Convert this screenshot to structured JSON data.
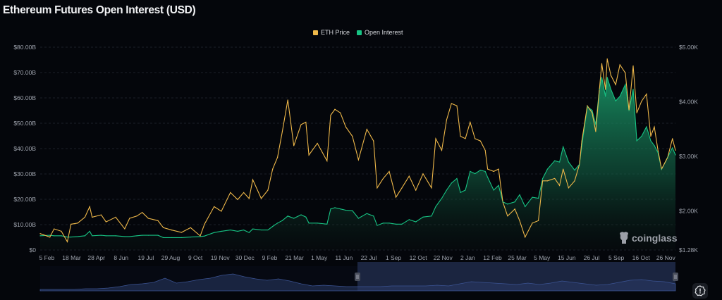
{
  "title": "Ethereum Futures Open Interest (USD)",
  "legend": [
    {
      "label": "ETH Price",
      "color": "#f0b94a"
    },
    {
      "label": "Open Interest",
      "color": "#17c484"
    }
  ],
  "watermark": "coinglass",
  "settings_icon": "settings-alert-icon",
  "chart_data": {
    "type": "line",
    "title": "Ethereum Futures Open Interest (USD)",
    "grid": true,
    "legend_position": "top-center",
    "x_ticks": [
      "5 Feb",
      "18 Mar",
      "28 Apr",
      "8 Jun",
      "19 Jul",
      "29 Aug",
      "9 Oct",
      "19 Nov",
      "30 Dec",
      "9 Feb",
      "21 Mar",
      "1 May",
      "11 Jun",
      "22 Jul",
      "1 Sep",
      "12 Oct",
      "22 Nov",
      "2 Jan",
      "12 Feb",
      "25 Mar",
      "5 May",
      "15 Jun",
      "26 Jul",
      "5 Sep",
      "16 Oct",
      "26 Nov"
    ],
    "x_range": [
      "2023-01-25",
      "2025-12-12"
    ],
    "y_left": {
      "ticks": [
        "$0",
        "$10.00B",
        "$20.00B",
        "$30.00B",
        "$40.00B",
        "$50.00B",
        "$60.00B",
        "$70.00B",
        "$80.00B"
      ],
      "range": [
        0,
        80
      ],
      "unit": "billion USD"
    },
    "y_right": {
      "ticks": [
        "$1.28K",
        "$2.00K",
        "$3.00K",
        "$4.00K",
        "$5.00K"
      ],
      "range": [
        1280,
        5000
      ],
      "unit": "USD"
    },
    "x": [
      "2023-01-25",
      "2023-02-10",
      "2023-02-17",
      "2023-03-01",
      "2023-03-11",
      "2023-03-17",
      "2023-03-28",
      "2023-04-09",
      "2023-04-17",
      "2023-04-21",
      "2023-05-06",
      "2023-05-14",
      "2023-05-30",
      "2023-06-14",
      "2023-06-22",
      "2023-07-04",
      "2023-07-13",
      "2023-07-23",
      "2023-08-08",
      "2023-08-17",
      "2023-08-31",
      "2023-09-16",
      "2023-10-01",
      "2023-10-17",
      "2023-10-24",
      "2023-11-09",
      "2023-11-21",
      "2023-12-06",
      "2023-12-18",
      "2023-12-28",
      "2024-01-06",
      "2024-01-12",
      "2024-01-26",
      "2024-02-06",
      "2024-02-14",
      "2024-02-22",
      "2024-03-01",
      "2024-03-10",
      "2024-03-20",
      "2024-04-01",
      "2024-04-09",
      "2024-04-14",
      "2024-04-28",
      "2024-05-14",
      "2024-05-20",
      "2024-05-27",
      "2024-06-05",
      "2024-06-14",
      "2024-06-25",
      "2024-07-05",
      "2024-07-19",
      "2024-07-30",
      "2024-08-05",
      "2024-08-15",
      "2024-08-25",
      "2024-09-05",
      "2024-09-15",
      "2024-09-27",
      "2024-10-08",
      "2024-10-20",
      "2024-11-03",
      "2024-11-10",
      "2024-11-20",
      "2024-11-28",
      "2024-12-06",
      "2024-12-15",
      "2024-12-21",
      "2024-12-29",
      "2025-01-06",
      "2025-01-14",
      "2025-01-23",
      "2025-01-31",
      "2025-02-04",
      "2025-02-14",
      "2025-02-22",
      "2025-03-01",
      "2025-03-09",
      "2025-03-21",
      "2025-03-29",
      "2025-04-07",
      "2025-04-19",
      "2025-04-29",
      "2025-05-06",
      "2025-05-14",
      "2025-05-26",
      "2025-06-03",
      "2025-06-09",
      "2025-06-18",
      "2025-06-28",
      "2025-07-06",
      "2025-07-10",
      "2025-07-19",
      "2025-07-27",
      "2025-08-02",
      "2025-08-08",
      "2025-08-12",
      "2025-08-18",
      "2025-08-21",
      "2025-08-27",
      "2025-09-04",
      "2025-09-11",
      "2025-09-20",
      "2025-09-26",
      "2025-10-03",
      "2025-10-09",
      "2025-10-17",
      "2025-10-25",
      "2025-11-01",
      "2025-11-07",
      "2025-11-13",
      "2025-11-19",
      "2025-11-29",
      "2025-12-07",
      "2025-12-12"
    ],
    "series": [
      {
        "name": "ETH Price",
        "axis": "right",
        "color": "#f0b94a",
        "values": [
          1581,
          1516,
          1667,
          1624,
          1431,
          1753,
          1774,
          1882,
          2076,
          1882,
          1925,
          1796,
          1882,
          1667,
          1861,
          1903,
          1968,
          1861,
          1818,
          1689,
          1645,
          1603,
          1689,
          1538,
          1753,
          2076,
          1990,
          2334,
          2205,
          2334,
          2226,
          2570,
          2226,
          2377,
          2764,
          2979,
          3451,
          4032,
          3193,
          3580,
          3624,
          3022,
          3237,
          2914,
          3753,
          3860,
          3796,
          3538,
          3366,
          2935,
          3495,
          3280,
          2419,
          2592,
          2721,
          2248,
          2419,
          2635,
          2377,
          2678,
          2419,
          3322,
          3108,
          3667,
          3967,
          3925,
          3366,
          3322,
          3624,
          3322,
          3280,
          3108,
          2764,
          2721,
          2764,
          2161,
          1903,
          2032,
          1818,
          1516,
          1774,
          1818,
          2548,
          2548,
          2592,
          2463,
          2764,
          2419,
          2548,
          2850,
          3280,
          3925,
          3796,
          3451,
          4225,
          4699,
          4225,
          4785,
          4483,
          4312,
          4677,
          4527,
          3838,
          4656,
          3796,
          4011,
          4140,
          3366,
          3538,
          3108,
          2764,
          2979,
          3322,
          3108
        ]
      },
      {
        "name": "Open Interest",
        "axis": "left",
        "color": "#17c484",
        "values": [
          5.6,
          5.8,
          5.6,
          5.6,
          5.1,
          5.1,
          5.3,
          5.6,
          7.4,
          5.6,
          5.8,
          5.6,
          5.6,
          5.3,
          5.3,
          5.6,
          5.8,
          5.8,
          5.8,
          4.9,
          4.9,
          4.9,
          5.1,
          5.3,
          5.5,
          6.9,
          7.4,
          7.9,
          7.4,
          7.9,
          6.9,
          8.3,
          7.9,
          7.9,
          9.3,
          10.6,
          11.6,
          13.4,
          12.5,
          13.9,
          13.0,
          10.6,
          10.6,
          10.2,
          16.2,
          16.7,
          16.2,
          15.7,
          15.5,
          12.5,
          14.4,
          13.4,
          9.7,
          10.6,
          10.6,
          10.2,
          10.2,
          12.0,
          11.1,
          13.0,
          13.4,
          17.1,
          20.4,
          23.6,
          26.4,
          28.2,
          22.7,
          23.6,
          31.0,
          30.1,
          31.5,
          31.0,
          28.7,
          23.6,
          25.5,
          19.0,
          18.1,
          19.0,
          21.8,
          17.1,
          20.8,
          20.4,
          28.2,
          31.9,
          35.2,
          34.7,
          40.7,
          34.7,
          31.5,
          33.8,
          41.2,
          56.5,
          55.1,
          49.5,
          63.4,
          68.1,
          60.6,
          68.1,
          63.4,
          58.8,
          60.6,
          65.3,
          55.1,
          63.4,
          43.1,
          44.9,
          48.6,
          43.1,
          41.2,
          38.4,
          31.9,
          36.6,
          40.3,
          37.5
        ]
      }
    ]
  }
}
